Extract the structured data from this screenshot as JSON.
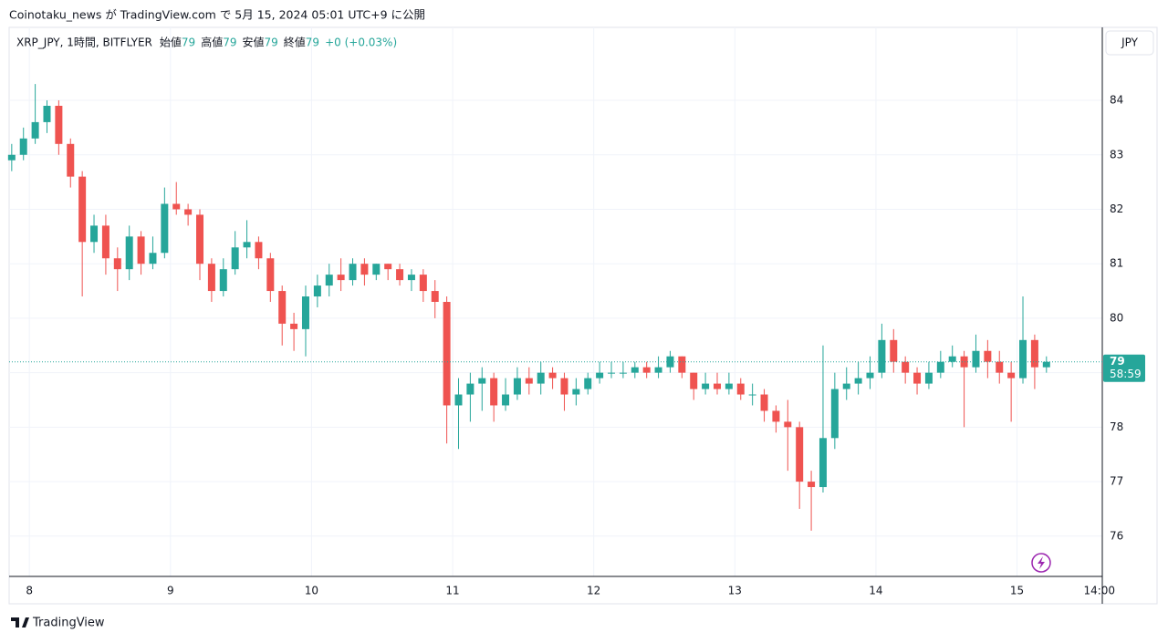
{
  "header": {
    "title": "Coinotaku_news が TradingView.com で 5月 15, 2024 05:01 UTC+9 に公開"
  },
  "footer": {
    "brand": "TradingView"
  },
  "chart_data": {
    "type": "candlestick",
    "legend_text": {
      "symbol": "XRP_JPY, 1時間, BITFLYER",
      "items": [
        {
          "label": "始値",
          "value": 79
        },
        {
          "label": "高値",
          "value": 79
        },
        {
          "label": "安値",
          "value": 79
        },
        {
          "label": "終値",
          "value": 79
        }
      ],
      "change": "+0 (+0.03%)"
    },
    "currency": "JPY",
    "last_price": {
      "value": 79.2,
      "label": "79"
    },
    "countdown": "58:59",
    "up_color": "#26a69a",
    "down_color": "#ef5350",
    "grid": true,
    "x": [
      -3,
      -1,
      1,
      3,
      5,
      7,
      9,
      11,
      13,
      15,
      17,
      19,
      21,
      23,
      25,
      27,
      29,
      31,
      33,
      35,
      37,
      39,
      41,
      43,
      45,
      47,
      49,
      51,
      53,
      55,
      57,
      59,
      61,
      63,
      65,
      67,
      69,
      71,
      73,
      75,
      77,
      79,
      81,
      83,
      85,
      87,
      89,
      91,
      93,
      95,
      97,
      99,
      101,
      103,
      105,
      107,
      109,
      111,
      113,
      115,
      117,
      119,
      121,
      123,
      125,
      127,
      129,
      131,
      133,
      135,
      137,
      139,
      141,
      143,
      145,
      147,
      149,
      151,
      153,
      155,
      157,
      159,
      161,
      163,
      165,
      167,
      169,
      171,
      173
    ],
    "open": [
      82.9,
      83.0,
      83.3,
      83.6,
      83.9,
      83.2,
      82.6,
      81.4,
      81.7,
      81.1,
      80.9,
      81.5,
      81.0,
      81.2,
      82.1,
      82.0,
      81.9,
      81.0,
      80.5,
      80.9,
      81.3,
      81.4,
      81.1,
      80.5,
      79.9,
      79.8,
      80.4,
      80.6,
      80.8,
      80.7,
      81.0,
      80.8,
      81.0,
      80.9,
      80.7,
      80.8,
      80.5,
      80.3,
      78.4,
      78.6,
      78.8,
      78.9,
      78.4,
      78.6,
      78.9,
      78.8,
      79.0,
      78.9,
      78.6,
      78.7,
      78.9,
      79.0,
      79.0,
      79.0,
      79.1,
      79.0,
      79.1,
      79.3,
      79.0,
      78.7,
      78.8,
      78.7,
      78.8,
      78.6,
      78.6,
      78.3,
      78.1,
      78.0,
      77.0,
      76.9,
      77.8,
      78.7,
      78.8,
      78.9,
      79.0,
      79.6,
      79.2,
      79.0,
      78.8,
      79.0,
      79.2,
      79.3,
      79.1,
      79.4,
      79.2,
      79.0,
      78.9,
      79.6,
      79.1
    ],
    "high": [
      83.2,
      83.5,
      84.3,
      84.0,
      84.0,
      83.3,
      82.7,
      81.9,
      81.9,
      81.3,
      81.7,
      81.6,
      81.5,
      82.4,
      82.5,
      82.1,
      82.0,
      81.1,
      81.1,
      81.6,
      81.8,
      81.5,
      81.2,
      80.6,
      80.1,
      80.6,
      80.8,
      81.0,
      81.1,
      81.1,
      81.1,
      81.0,
      81.0,
      81.0,
      80.9,
      80.9,
      80.7,
      80.4,
      78.9,
      79.0,
      79.1,
      79.0,
      78.9,
      79.1,
      79.1,
      79.2,
      79.1,
      79.0,
      78.9,
      79.0,
      79.2,
      79.2,
      79.2,
      79.2,
      79.2,
      79.3,
      79.4,
      79.3,
      79.0,
      79.0,
      79.0,
      79.0,
      78.9,
      78.8,
      78.7,
      78.4,
      78.5,
      78.1,
      77.2,
      79.5,
      79.0,
      79.1,
      79.2,
      79.3,
      79.9,
      79.8,
      79.3,
      79.1,
      79.2,
      79.4,
      79.5,
      79.4,
      79.7,
      79.6,
      79.4,
      79.2,
      80.4,
      79.7,
      79.3
    ],
    "low": [
      82.7,
      82.9,
      83.2,
      83.4,
      83.0,
      82.4,
      80.4,
      81.2,
      80.8,
      80.5,
      80.7,
      80.8,
      80.9,
      81.1,
      81.9,
      81.7,
      80.7,
      80.3,
      80.4,
      80.8,
      81.1,
      80.9,
      80.3,
      79.5,
      79.4,
      79.3,
      80.2,
      80.4,
      80.5,
      80.6,
      80.6,
      80.7,
      80.7,
      80.6,
      80.5,
      80.3,
      80.0,
      77.7,
      77.6,
      78.1,
      78.3,
      78.1,
      78.3,
      78.5,
      78.6,
      78.6,
      78.7,
      78.3,
      78.4,
      78.6,
      78.8,
      78.9,
      78.9,
      78.9,
      78.9,
      78.9,
      79.0,
      78.9,
      78.5,
      78.6,
      78.6,
      78.6,
      78.5,
      78.4,
      78.1,
      77.9,
      77.2,
      76.5,
      76.1,
      76.8,
      77.6,
      78.5,
      78.6,
      78.7,
      78.9,
      79.0,
      78.8,
      78.6,
      78.7,
      78.9,
      79.1,
      78.0,
      79.0,
      78.9,
      78.8,
      78.1,
      78.8,
      78.7,
      79.0
    ],
    "close": [
      83.0,
      83.3,
      83.6,
      83.9,
      83.2,
      82.6,
      81.4,
      81.7,
      81.1,
      80.9,
      81.5,
      81.0,
      81.2,
      82.1,
      82.0,
      81.9,
      81.0,
      80.5,
      80.9,
      81.3,
      81.4,
      81.1,
      80.5,
      79.9,
      79.8,
      80.4,
      80.6,
      80.8,
      80.7,
      81.0,
      80.8,
      81.0,
      80.9,
      80.7,
      80.8,
      80.5,
      80.3,
      78.4,
      78.6,
      78.8,
      78.9,
      78.4,
      78.6,
      78.9,
      78.8,
      79.0,
      78.9,
      78.6,
      78.7,
      78.9,
      79.0,
      79.0,
      79.0,
      79.1,
      79.0,
      79.1,
      79.3,
      79.0,
      78.7,
      78.8,
      78.7,
      78.8,
      78.6,
      78.6,
      78.3,
      78.1,
      78.0,
      77.0,
      76.9,
      77.8,
      78.7,
      78.8,
      78.9,
      79.0,
      79.6,
      79.2,
      79.0,
      78.8,
      79.0,
      79.2,
      79.3,
      79.1,
      79.4,
      79.2,
      79.0,
      78.9,
      79.6,
      79.1,
      79.2
    ],
    "xlim": [
      -3.44,
      182.5
    ],
    "xticks": [
      {
        "value": 0,
        "label": "8"
      },
      {
        "value": 24,
        "label": "9"
      },
      {
        "value": 48,
        "label": "10"
      },
      {
        "value": 72,
        "label": "11"
      },
      {
        "value": 96,
        "label": "12"
      },
      {
        "value": 120,
        "label": "13"
      },
      {
        "value": 144,
        "label": "14"
      },
      {
        "value": 168,
        "label": "15"
      },
      {
        "value": 182,
        "label": "14:00"
      }
    ],
    "ylim": [
      75.26,
      85.34
    ],
    "yticks": [
      76,
      77,
      78,
      79,
      80,
      81,
      82,
      83,
      84
    ]
  }
}
